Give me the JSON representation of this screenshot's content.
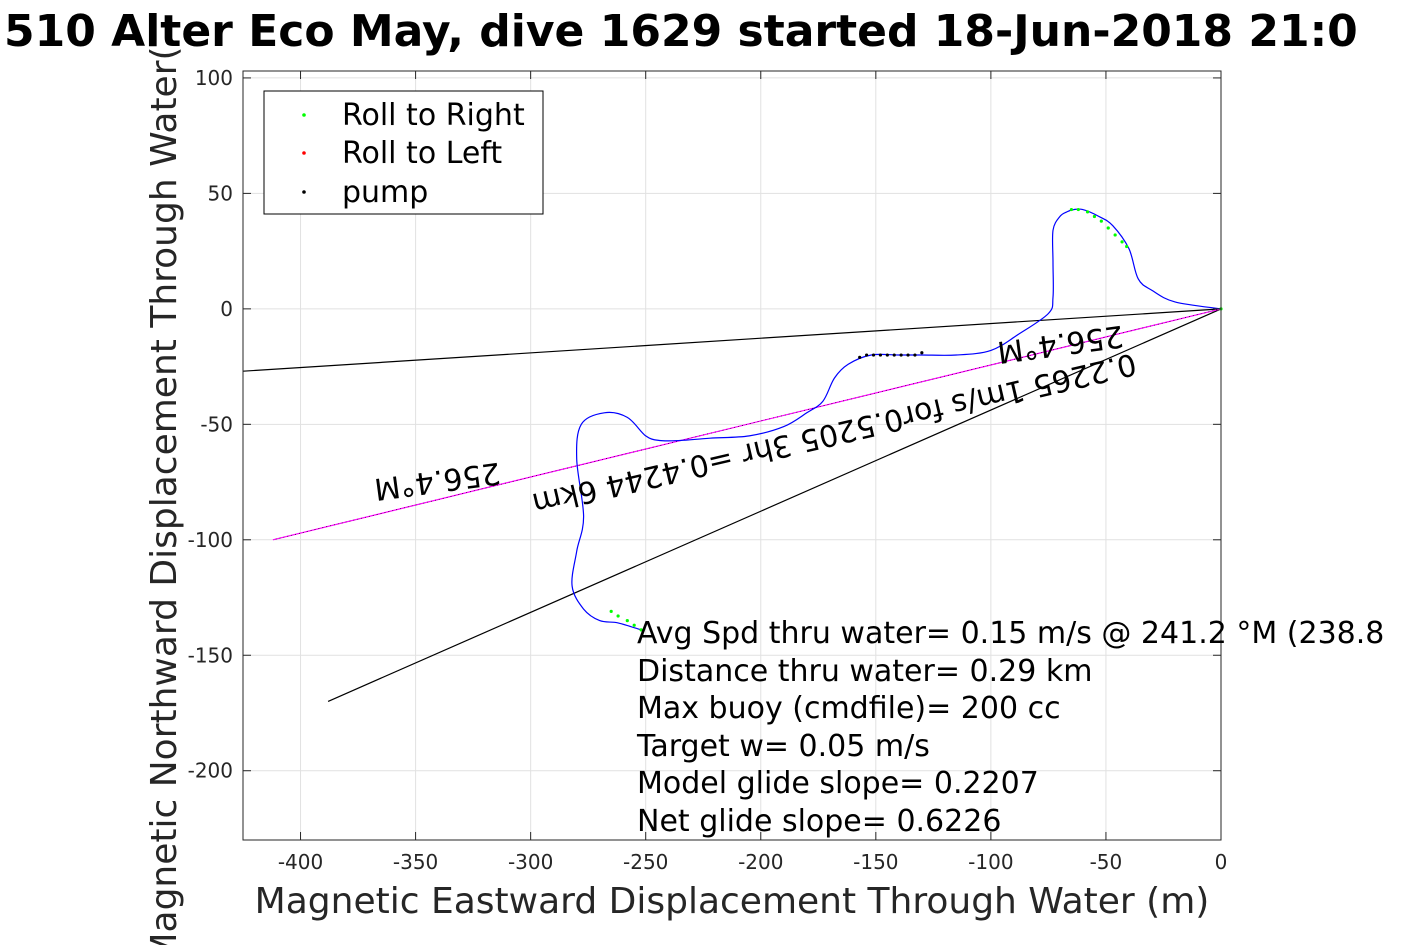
{
  "chart_data": {
    "type": "line",
    "title": "510 Alter Eco May, dive 1629 started 18-Jun-2018 21:0",
    "xlabel": "Magnetic Eastward Displacement Through Water (m)",
    "ylabel": "Magnetic Northward Displacement Through Water(",
    "xlim": [
      -425,
      0
    ],
    "ylim": [
      -230,
      103
    ],
    "xticks": [
      -400,
      -350,
      -300,
      -250,
      -200,
      -150,
      -100,
      -50,
      0
    ],
    "yticks": [
      100,
      50,
      0,
      -50,
      -100,
      -150,
      -200
    ],
    "grid": true,
    "legend": {
      "placement": "top-left",
      "entries": [
        {
          "label": "Roll to Right",
          "color": "#00ff00"
        },
        {
          "label": "Roll to Left",
          "color": "#ff0000"
        },
        {
          "label": "pump",
          "color": "#000000"
        }
      ]
    },
    "track": {
      "name": "",
      "color": "#0000ff",
      "x": [
        0,
        -20,
        -30,
        -36,
        -40,
        -47,
        -53,
        -60,
        -64,
        -67,
        -70,
        -73,
        -73,
        -73,
        -75,
        -88,
        -100,
        -115,
        -130,
        -140,
        -152,
        -162,
        -168,
        -173,
        -180,
        -190,
        -205,
        -222,
        -235,
        -244,
        -250,
        -258,
        -268,
        -278,
        -280,
        -277,
        -280,
        -282,
        -277,
        -270,
        -262,
        -252
      ],
      "y": [
        0,
        3,
        8,
        13,
        26,
        36,
        40,
        43,
        43,
        42,
        40,
        34,
        20,
        5,
        -2,
        -11,
        -18,
        -20,
        -20,
        -20,
        -20,
        -24,
        -30,
        -40,
        -45,
        -51,
        -55,
        -56,
        -57,
        -57,
        -55,
        -47,
        -45,
        -50,
        -65,
        -90,
        -105,
        -120,
        -130,
        -135,
        -136,
        -139
      ]
    },
    "roll_right_points": {
      "color": "#00ff00",
      "x": [
        -65,
        -62,
        -58,
        -55,
        -52,
        -49,
        -46,
        -43,
        -41,
        -265,
        -262,
        -258,
        -255,
        -252,
        0
      ],
      "y": [
        43,
        43,
        42,
        40,
        38,
        35,
        32,
        29,
        27,
        -131,
        -133,
        -135,
        -137,
        -139,
        0
      ]
    },
    "pump_points": {
      "color": "#000000",
      "x": [
        -157,
        -154,
        -151,
        -148,
        -145,
        -142,
        -139,
        -136,
        -133,
        -130
      ],
      "y": [
        -21,
        -20,
        -20,
        -20,
        -20,
        -20,
        -20,
        -20,
        -20,
        -19
      ]
    },
    "black_lines": [
      {
        "color": "#000000",
        "x": [
          0,
          -425
        ],
        "y": [
          0,
          -27
        ]
      },
      {
        "color": "#000000",
        "x": [
          0,
          -388
        ],
        "y": [
          0,
          -170
        ]
      }
    ],
    "magenta_line": {
      "color": "#ff00ff",
      "x": [
        0,
        -412
      ],
      "y": [
        0,
        -100
      ]
    },
    "direction_labels": [
      "256.4°M",
      "0.2265 1m/s for0.5205 3hr =0.4244 6km",
      "256.4°M"
    ],
    "summary_lines": [
      "Avg Spd thru water=  0.15 m/s @ 241.2 °M (238.8",
      "Distance thru water=  0.29 km",
      "Max buoy (cmdfile)= 200 cc",
      "Target w= 0.05 m/s",
      "Model glide slope= 0.2207",
      "Net glide slope= 0.6226"
    ]
  }
}
